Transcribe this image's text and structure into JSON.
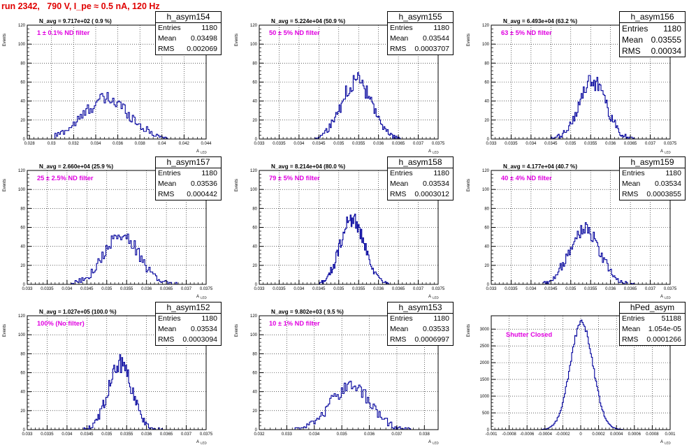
{
  "title": "run 2342,   790 V, I_pe ≈ 0.5 nA, 120 Hz",
  "chart_data": [
    {
      "type": "bar",
      "hname": "h_asym154",
      "navg": "N_avg = 9.717e+02 ( 0.9 %)",
      "filter": "1 ± 0.1% ND filter",
      "stats": {
        "entries_label": "Entries",
        "entries": "1180",
        "mean_label": "Mean",
        "mean": "0.03498",
        "rms_label": "RMS",
        "rms": "0.002069"
      },
      "ylabel": "Events",
      "xlabel": "",
      "xlim": [
        0.0278,
        0.044
      ],
      "ylim": [
        0,
        120
      ],
      "xticks": [
        0.028,
        0.03,
        0.032,
        0.034,
        0.036,
        0.038,
        0.04,
        0.042,
        0.044
      ],
      "xtick_labels": [
        "0.028",
        "0.03",
        "0.032",
        "0.034",
        "0.036",
        "0.038",
        "0.04",
        "0.042",
        "0.044"
      ],
      "yticks": [
        0,
        20,
        40,
        60,
        80,
        100,
        120
      ],
      "ytick_labels": [
        "0",
        "20",
        "40",
        "60",
        "80",
        "100",
        "120"
      ],
      "dist": {
        "mu": 0.03498,
        "sigma": 0.0021,
        "peak": 42,
        "x0": 0.0303,
        "x1": 0.0405,
        "n": 80
      }
    },
    {
      "type": "bar",
      "hname": "h_asym155",
      "navg": "N_avg = 5.224e+04 (50.9 %)",
      "filter": "50 ± 5% ND filter",
      "stats": {
        "entries_label": "Entries",
        "entries": "1180",
        "mean_label": "Mean",
        "mean": "0.03544",
        "rms_label": "RMS",
        "rms": "0.0003707"
      },
      "ylabel": "Events",
      "xlabel": "",
      "xlim": [
        0.033,
        0.0375
      ],
      "ylim": [
        0,
        120
      ],
      "xticks": [
        0.033,
        0.0335,
        0.034,
        0.0345,
        0.035,
        0.0355,
        0.036,
        0.0365,
        0.037,
        0.0375
      ],
      "xtick_labels": [
        "0.033",
        "0.0335",
        "0.034",
        "0.0345",
        "0.035",
        "0.0355",
        "0.036",
        "0.0365",
        "0.037",
        "0.0375"
      ],
      "yticks": [
        0,
        20,
        40,
        60,
        80,
        100,
        120
      ],
      "ytick_labels": [
        "0",
        "20",
        "40",
        "60",
        "80",
        "100",
        "120"
      ],
      "dist": {
        "mu": 0.03544,
        "sigma": 0.00037,
        "peak": 62,
        "x0": 0.0344,
        "x1": 0.0366,
        "n": 80
      }
    },
    {
      "type": "bar",
      "hname": "h_asym156",
      "navg": "N_avg = 6.493e+04 (63.2 %)",
      "filter": "63 ± 5% ND filter",
      "stats": {
        "entries_label": "Entries",
        "entries": "1180",
        "mean_label": "Mean",
        "mean": "0.03555",
        "rms_label": "RMS",
        "rms": "0.00034"
      },
      "ylabel": "Events",
      "xlabel": "",
      "xlim": [
        0.033,
        0.0375
      ],
      "ylim": [
        0,
        120
      ],
      "xticks": [
        0.033,
        0.0335,
        0.034,
        0.0345,
        0.035,
        0.0355,
        0.036,
        0.0365,
        0.037,
        0.0375
      ],
      "xtick_labels": [
        "0.033",
        "0.0335",
        "0.034",
        "0.0345",
        "0.035",
        "0.0355",
        "0.036",
        "0.0365",
        "0.037",
        "0.0375"
      ],
      "yticks": [
        0,
        20,
        40,
        60,
        80,
        100,
        120
      ],
      "ytick_labels": [
        "0",
        "20",
        "40",
        "60",
        "80",
        "100",
        "120"
      ],
      "dist": {
        "mu": 0.03555,
        "sigma": 0.00034,
        "peak": 60,
        "x0": 0.0345,
        "x1": 0.0366,
        "n": 80
      }
    },
    {
      "type": "bar",
      "hname": "h_asym157",
      "navg": "N_avg = 2.660e+04 (25.9 %)",
      "filter": "25 ± 2.5% ND filter",
      "stats": {
        "entries_label": "Entries",
        "entries": "1180",
        "mean_label": "Mean",
        "mean": "0.03536",
        "rms_label": "RMS",
        "rms": "0.000442"
      },
      "ylabel": "Events",
      "xlabel": "",
      "xlim": [
        0.033,
        0.0375
      ],
      "ylim": [
        0,
        120
      ],
      "xticks": [
        0.033,
        0.0335,
        0.034,
        0.0345,
        0.035,
        0.0355,
        0.036,
        0.0365,
        0.037,
        0.0375
      ],
      "xtick_labels": [
        "0.033",
        "0.0335",
        "0.034",
        "0.0345",
        "0.035",
        "0.0355",
        "0.036",
        "0.0365",
        "0.037",
        "0.0375"
      ],
      "yticks": [
        0,
        20,
        40,
        60,
        80,
        100,
        120
      ],
      "ytick_labels": [
        "0",
        "20",
        "40",
        "60",
        "80",
        "100",
        "120"
      ],
      "dist": {
        "mu": 0.03536,
        "sigma": 0.00044,
        "peak": 52,
        "x0": 0.0341,
        "x1": 0.0368,
        "n": 80
      }
    },
    {
      "type": "bar",
      "hname": "h_asym158",
      "navg": "N_avg = 8.214e+04 (80.0 %)",
      "filter": "79 ± 5% ND filter",
      "stats": {
        "entries_label": "Entries",
        "entries": "1180",
        "mean_label": "Mean",
        "mean": "0.03534",
        "rms_label": "RMS",
        "rms": "0.0003012"
      },
      "ylabel": "Events",
      "xlabel": "",
      "xlim": [
        0.033,
        0.0375
      ],
      "ylim": [
        0,
        120
      ],
      "xticks": [
        0.033,
        0.0335,
        0.034,
        0.0345,
        0.035,
        0.0355,
        0.036,
        0.0365,
        0.037,
        0.0375
      ],
      "xtick_labels": [
        "0.033",
        "0.0335",
        "0.034",
        "0.0345",
        "0.035",
        "0.0355",
        "0.036",
        "0.0365",
        "0.037",
        "0.0375"
      ],
      "yticks": [
        0,
        20,
        40,
        60,
        80,
        100,
        120
      ],
      "ytick_labels": [
        "0",
        "20",
        "40",
        "60",
        "80",
        "100",
        "120"
      ],
      "dist": {
        "mu": 0.03534,
        "sigma": 0.0003,
        "peak": 68,
        "x0": 0.0345,
        "x1": 0.0363,
        "n": 80
      }
    },
    {
      "type": "bar",
      "hname": "h_asym159",
      "navg": "N_avg = 4.177e+04 (40.7 %)",
      "filter": "40 ± 4% ND filter",
      "stats": {
        "entries_label": "Entries",
        "entries": "1180",
        "mean_label": "Mean",
        "mean": "0.03534",
        "rms_label": "RMS",
        "rms": "0.0003855"
      },
      "ylabel": "Events",
      "xlabel": "",
      "xlim": [
        0.033,
        0.0375
      ],
      "ylim": [
        0,
        120
      ],
      "xticks": [
        0.033,
        0.0335,
        0.034,
        0.0345,
        0.035,
        0.0355,
        0.036,
        0.0365,
        0.037,
        0.0375
      ],
      "xtick_labels": [
        "0.033",
        "0.0335",
        "0.034",
        "0.0345",
        "0.035",
        "0.0355",
        "0.036",
        "0.0365",
        "0.037",
        "0.0375"
      ],
      "yticks": [
        0,
        20,
        40,
        60,
        80,
        100,
        120
      ],
      "ytick_labels": [
        "0",
        "20",
        "40",
        "60",
        "80",
        "100",
        "120"
      ],
      "dist": {
        "mu": 0.03534,
        "sigma": 0.00038,
        "peak": 60,
        "x0": 0.0343,
        "x1": 0.0366,
        "n": 80
      }
    },
    {
      "type": "bar",
      "hname": "h_asym152",
      "navg": "N_avg = 1.027e+05 (100.0 %)",
      "filter": "100% (No filter)",
      "stats": {
        "entries_label": "Entries",
        "entries": "1180",
        "mean_label": "Mean",
        "mean": "0.03534",
        "rms_label": "RMS",
        "rms": "0.0003094"
      },
      "ylabel": "Events",
      "xlabel": "",
      "xlim": [
        0.033,
        0.0375
      ],
      "ylim": [
        0,
        120
      ],
      "xticks": [
        0.033,
        0.0335,
        0.034,
        0.0345,
        0.035,
        0.0355,
        0.036,
        0.0365,
        0.037,
        0.0375
      ],
      "xtick_labels": [
        "0.033",
        "0.0335",
        "0.034",
        "0.0345",
        "0.035",
        "0.0355",
        "0.036",
        "0.0365",
        "0.037",
        "0.0375"
      ],
      "yticks": [
        0,
        20,
        40,
        60,
        80,
        100,
        120
      ],
      "ytick_labels": [
        "0",
        "20",
        "40",
        "60",
        "80",
        "100",
        "120"
      ],
      "dist": {
        "mu": 0.03534,
        "sigma": 0.0003,
        "peak": 70,
        "x0": 0.0344,
        "x1": 0.0364,
        "n": 80
      }
    },
    {
      "type": "bar",
      "hname": "h_asym153",
      "navg": "N_avg = 9.802e+03 ( 9.5 %)",
      "filter": "10 ± 1% ND filter",
      "stats": {
        "entries_label": "Entries",
        "entries": "1180",
        "mean_label": "Mean",
        "mean": "0.03533",
        "rms_label": "RMS",
        "rms": "0.0006997"
      },
      "ylabel": "Events",
      "xlabel": "",
      "xlim": [
        0.032,
        0.0385
      ],
      "ylim": [
        0,
        120
      ],
      "xticks": [
        0.032,
        0.033,
        0.034,
        0.035,
        0.036,
        0.037,
        0.038
      ],
      "xtick_labels": [
        "0.032",
        "0.033",
        "0.034",
        "0.035",
        "0.036",
        "0.037",
        "0.038"
      ],
      "yticks": [
        0,
        20,
        40,
        60,
        80,
        100,
        120
      ],
      "ytick_labels": [
        "0",
        "20",
        "40",
        "60",
        "80",
        "100",
        "120"
      ],
      "dist": {
        "mu": 0.03533,
        "sigma": 0.0007,
        "peak": 48,
        "x0": 0.0333,
        "x1": 0.0375,
        "n": 80
      }
    },
    {
      "type": "bar",
      "hname": "hPed_asym",
      "navg": "",
      "filter": "Shutter Closed",
      "bigstats": false,
      "stats": {
        "entries_label": "Entries",
        "entries": "51188",
        "mean_label": "Mean",
        "mean": "1.054e-05",
        "rms_label": "RMS",
        "rms": "0.0001266"
      },
      "ylabel": "Events",
      "xlabel": "",
      "xlim": [
        -0.001,
        0.001
      ],
      "ylim": [
        0,
        3400
      ],
      "xticks": [
        -0.001,
        -0.0008,
        -0.0006,
        -0.0004,
        -0.0002,
        0,
        0.0002,
        0.0004,
        0.0006,
        0.0008,
        0.001
      ],
      "xtick_labels": [
        "-0.001",
        "-0.0008",
        "-0.0006",
        "-0.0004",
        "-0.0002",
        "0",
        "0.0002",
        "0.0004",
        "0.0006",
        "0.0008",
        "0.001"
      ],
      "yticks": [
        0,
        500,
        1000,
        1500,
        2000,
        2500,
        3000
      ],
      "ytick_labels": [
        "0",
        "500",
        "1000",
        "1500",
        "2000",
        "2500",
        "3000"
      ],
      "dist": {
        "mu": 1.05e-05,
        "sigma": 0.000127,
        "peak": 3200,
        "x0": -0.00045,
        "x1": 0.00048,
        "n": 80
      }
    }
  ],
  "axis_symbol": "A",
  "axis_subscript": "LED"
}
